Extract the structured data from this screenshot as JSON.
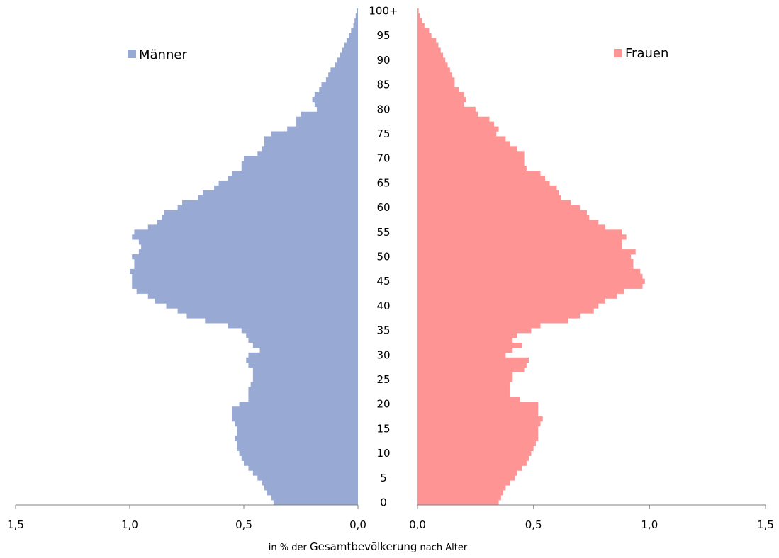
{
  "chart_data": {
    "type": "population-pyramid",
    "x_caption": {
      "pre": "in % der ",
      "main": "Gesamtbevölkerung",
      "post": " nach Alter"
    },
    "age_tick_labels": [
      "0",
      "5",
      "10",
      "15",
      "20",
      "25",
      "30",
      "35",
      "40",
      "45",
      "50",
      "55",
      "60",
      "65",
      "70",
      "75",
      "80",
      "85",
      "90",
      "95",
      "100+"
    ],
    "x_tick_labels_left": [
      "1,5",
      "1,0",
      "0,5",
      "0,0"
    ],
    "x_tick_labels_right": [
      "0,0",
      "0,5",
      "1,0",
      "1,5"
    ],
    "xlim": [
      0,
      1.5
    ],
    "ages": [
      0,
      1,
      2,
      3,
      4,
      5,
      6,
      7,
      8,
      9,
      10,
      11,
      12,
      13,
      14,
      15,
      16,
      17,
      18,
      19,
      20,
      21,
      22,
      23,
      24,
      25,
      26,
      27,
      28,
      29,
      30,
      31,
      32,
      33,
      34,
      35,
      36,
      37,
      38,
      39,
      40,
      41,
      42,
      43,
      44,
      45,
      46,
      47,
      48,
      49,
      50,
      51,
      52,
      53,
      54,
      55,
      56,
      57,
      58,
      59,
      60,
      61,
      62,
      63,
      64,
      65,
      66,
      67,
      68,
      69,
      70,
      71,
      72,
      73,
      74,
      75,
      76,
      77,
      78,
      79,
      80,
      81,
      82,
      83,
      84,
      85,
      86,
      87,
      88,
      89,
      90,
      91,
      92,
      93,
      94,
      95,
      96,
      97,
      98,
      99,
      100
    ],
    "series": [
      {
        "name": "Männer",
        "color": "#98a9d4",
        "side": "left",
        "values": [
          0.37,
          0.38,
          0.4,
          0.41,
          0.42,
          0.44,
          0.46,
          0.48,
          0.5,
          0.51,
          0.52,
          0.53,
          0.53,
          0.54,
          0.53,
          0.53,
          0.54,
          0.55,
          0.55,
          0.55,
          0.52,
          0.48,
          0.48,
          0.48,
          0.47,
          0.46,
          0.46,
          0.46,
          0.48,
          0.49,
          0.48,
          0.43,
          0.46,
          0.48,
          0.49,
          0.51,
          0.57,
          0.67,
          0.75,
          0.79,
          0.84,
          0.89,
          0.92,
          0.97,
          0.99,
          0.99,
          0.99,
          1.0,
          0.98,
          0.98,
          0.99,
          0.96,
          0.95,
          0.96,
          0.99,
          0.98,
          0.92,
          0.88,
          0.86,
          0.85,
          0.79,
          0.77,
          0.7,
          0.68,
          0.63,
          0.61,
          0.57,
          0.55,
          0.51,
          0.51,
          0.5,
          0.44,
          0.42,
          0.41,
          0.41,
          0.38,
          0.31,
          0.27,
          0.27,
          0.25,
          0.18,
          0.19,
          0.2,
          0.19,
          0.17,
          0.16,
          0.14,
          0.13,
          0.12,
          0.1,
          0.09,
          0.08,
          0.07,
          0.06,
          0.05,
          0.04,
          0.03,
          0.02,
          0.015,
          0.01,
          0.005
        ]
      },
      {
        "name": "Frauen",
        "color": "#ff9494",
        "side": "right",
        "values": [
          0.35,
          0.36,
          0.37,
          0.38,
          0.4,
          0.42,
          0.43,
          0.45,
          0.47,
          0.48,
          0.49,
          0.5,
          0.51,
          0.52,
          0.52,
          0.52,
          0.53,
          0.54,
          0.52,
          0.52,
          0.52,
          0.44,
          0.4,
          0.4,
          0.4,
          0.41,
          0.41,
          0.46,
          0.47,
          0.48,
          0.38,
          0.41,
          0.45,
          0.41,
          0.43,
          0.49,
          0.53,
          0.65,
          0.7,
          0.76,
          0.78,
          0.81,
          0.86,
          0.89,
          0.97,
          0.98,
          0.97,
          0.96,
          0.93,
          0.93,
          0.92,
          0.94,
          0.88,
          0.88,
          0.9,
          0.88,
          0.81,
          0.78,
          0.74,
          0.73,
          0.7,
          0.66,
          0.62,
          0.61,
          0.6,
          0.57,
          0.55,
          0.53,
          0.47,
          0.46,
          0.46,
          0.46,
          0.43,
          0.4,
          0.38,
          0.34,
          0.35,
          0.33,
          0.31,
          0.26,
          0.25,
          0.2,
          0.21,
          0.2,
          0.18,
          0.16,
          0.16,
          0.15,
          0.14,
          0.13,
          0.12,
          0.11,
          0.1,
          0.09,
          0.08,
          0.06,
          0.05,
          0.03,
          0.02,
          0.01,
          0.005
        ]
      }
    ]
  }
}
